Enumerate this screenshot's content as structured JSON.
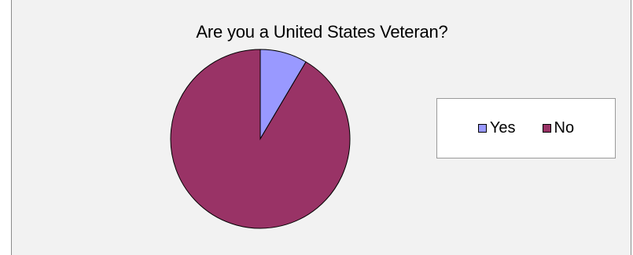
{
  "chart_data": {
    "type": "pie",
    "title": "Are you a United States Veteran?",
    "categories": [
      "Yes",
      "No"
    ],
    "values": [
      8.5,
      91.5
    ],
    "colors": [
      "#9999ff",
      "#993366"
    ],
    "legend_position": "right"
  }
}
